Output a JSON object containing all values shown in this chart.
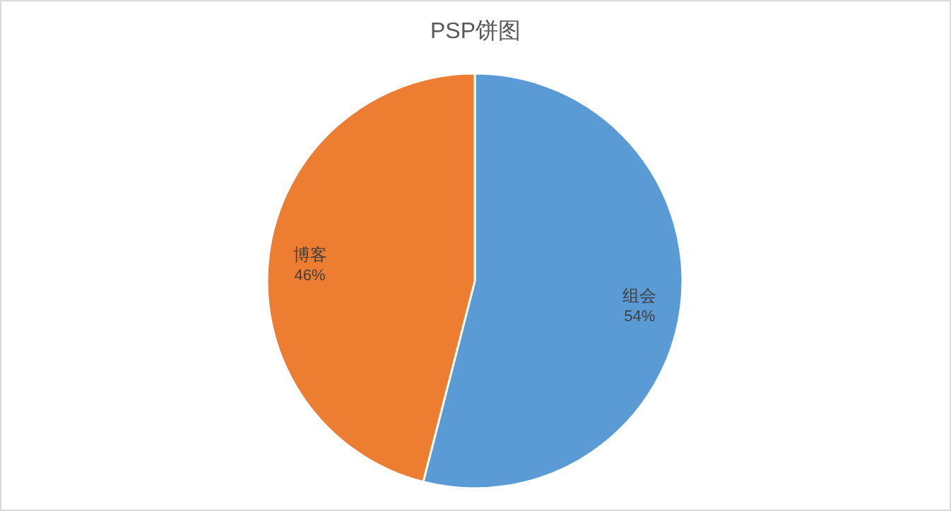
{
  "chart_data": {
    "type": "pie",
    "title": "PSP饼图",
    "categories": [
      "组会",
      "博客"
    ],
    "values": [
      54,
      46
    ],
    "value_labels": [
      "54%",
      "46%"
    ],
    "colors": [
      "#5b9bd5",
      "#ed7d31"
    ]
  }
}
